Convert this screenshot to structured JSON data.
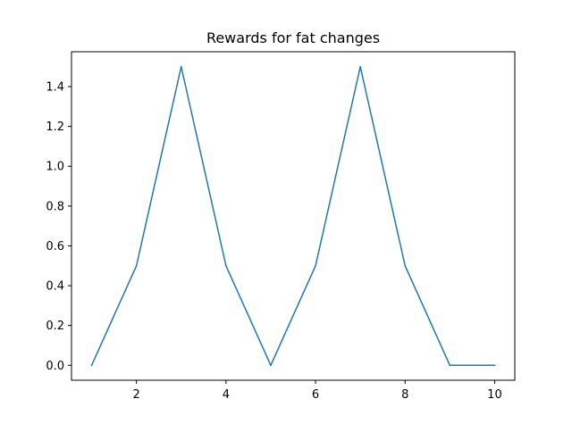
{
  "chart_data": {
    "type": "line",
    "title": "Rewards for fat changes",
    "xlabel": "",
    "ylabel": "",
    "x": [
      1,
      2,
      3,
      4,
      5,
      6,
      7,
      8,
      9,
      10
    ],
    "series": [
      {
        "values": [
          0.0,
          0.5,
          1.5,
          0.5,
          0.0,
          0.5,
          1.5,
          0.5,
          0.0,
          0.0
        ],
        "color": "#1f77b4"
      }
    ],
    "xlim": [
      0.55,
      10.45
    ],
    "ylim": [
      -0.075,
      1.575
    ],
    "xticks": [
      2,
      4,
      6,
      8,
      10
    ],
    "xtick_labels": [
      "2",
      "4",
      "6",
      "8",
      "10"
    ],
    "yticks": [
      0.0,
      0.2,
      0.4,
      0.6,
      0.8,
      1.0,
      1.2,
      1.4
    ],
    "ytick_labels": [
      "0.0",
      "0.2",
      "0.4",
      "0.6",
      "0.8",
      "1.0",
      "1.2",
      "1.4"
    ],
    "grid": false,
    "legend": "none"
  }
}
